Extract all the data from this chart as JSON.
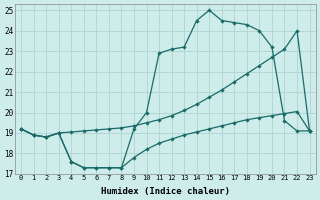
{
  "xlabel": "Humidex (Indice chaleur)",
  "bg_color": "#cdecea",
  "grid_color": "#add4d0",
  "line_color": "#1a6b6a",
  "xlim": [
    -0.5,
    23.5
  ],
  "ylim": [
    17,
    25.3
  ],
  "yticks": [
    17,
    18,
    19,
    20,
    21,
    22,
    23,
    24,
    25
  ],
  "xticks": [
    0,
    1,
    2,
    3,
    4,
    5,
    6,
    7,
    8,
    9,
    10,
    11,
    12,
    13,
    14,
    15,
    16,
    17,
    18,
    19,
    20,
    21,
    22,
    23
  ],
  "line1_x": [
    0,
    1,
    2,
    3,
    4,
    5,
    6,
    7,
    8,
    9,
    10,
    11,
    12,
    13,
    14,
    15,
    16,
    17,
    18,
    19,
    20,
    21,
    22,
    23
  ],
  "line1_y": [
    19.2,
    18.9,
    18.8,
    19.0,
    19.05,
    19.1,
    19.15,
    19.2,
    19.25,
    19.35,
    19.5,
    19.65,
    19.85,
    20.1,
    20.4,
    20.75,
    21.1,
    21.5,
    21.9,
    22.3,
    22.7,
    23.1,
    24.0,
    19.1
  ],
  "line2_x": [
    0,
    1,
    2,
    3,
    4,
    5,
    6,
    7,
    8,
    9,
    10,
    11,
    12,
    13,
    14,
    15,
    16,
    17,
    18,
    19,
    20,
    21,
    22,
    23
  ],
  "line2_y": [
    19.2,
    18.9,
    18.8,
    19.0,
    17.6,
    17.3,
    17.3,
    17.3,
    17.3,
    19.2,
    20.0,
    22.9,
    23.1,
    23.2,
    24.5,
    25.0,
    24.5,
    24.4,
    24.3,
    24.0,
    23.2,
    19.6,
    19.1,
    19.1
  ],
  "line3_x": [
    0,
    1,
    2,
    3,
    4,
    5,
    6,
    7,
    8,
    9,
    10,
    11,
    12,
    13,
    14,
    15,
    16,
    17,
    18,
    19,
    20,
    21,
    22,
    23
  ],
  "line3_y": [
    19.2,
    18.9,
    18.8,
    19.0,
    17.6,
    17.3,
    17.3,
    17.3,
    17.3,
    17.8,
    18.2,
    18.5,
    18.7,
    18.9,
    19.05,
    19.2,
    19.35,
    19.5,
    19.65,
    19.75,
    19.85,
    19.95,
    20.05,
    19.1
  ]
}
